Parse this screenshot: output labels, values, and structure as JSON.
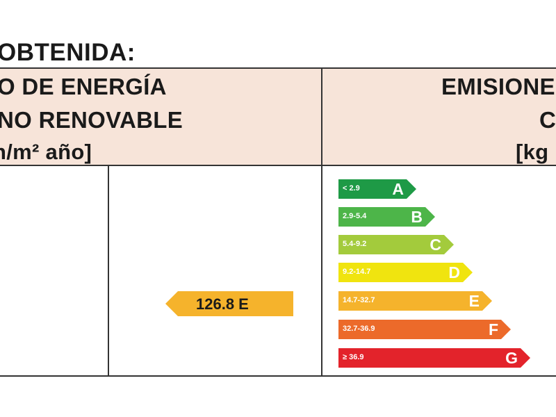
{
  "title": "OBTENIDA:",
  "header": {
    "left": [
      "O DE ENERGÍA",
      "NO RENOVABLE",
      "n/m² año]"
    ],
    "right": [
      "EMISIONE",
      "C",
      "[kg"
    ]
  },
  "indicator": {
    "label": "126.8 E",
    "color": "#f5b32c"
  },
  "scale": [
    {
      "range": "< 2.9",
      "letter": "A",
      "color": "#1e9a46"
    },
    {
      "range": "2.9-5.4",
      "letter": "B",
      "color": "#4db549"
    },
    {
      "range": "5.4-9.2",
      "letter": "C",
      "color": "#a3cb3c"
    },
    {
      "range": "9.2-14.7",
      "letter": "D",
      "color": "#f0e40f"
    },
    {
      "range": "14.7-32.7",
      "letter": "E",
      "color": "#f5b32c"
    },
    {
      "range": "32.7-36.9",
      "letter": "F",
      "color": "#ec6a2a"
    },
    {
      "range": "≥ 36.9",
      "letter": "G",
      "color": "#e3232b"
    }
  ]
}
